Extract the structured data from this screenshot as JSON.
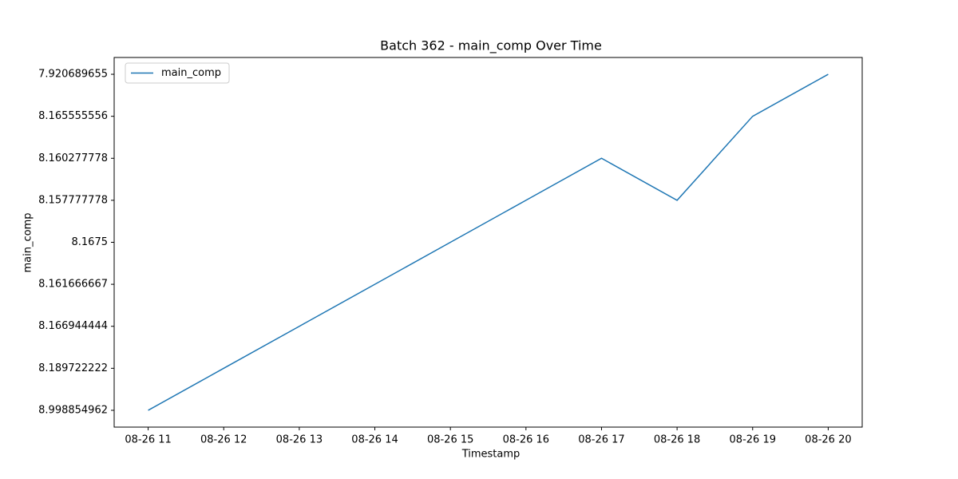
{
  "chart_data": {
    "type": "line",
    "title": "Batch 362 - main_comp Over Time",
    "x_label": "Timestamp",
    "y_label": "main_comp",
    "categories": [
      "08-26 11",
      "08-26 12",
      "08-26 13",
      "08-26 14",
      "08-26 15",
      "08-26 16",
      "08-26 17",
      "08-26 18",
      "08-26 19",
      "08-26 20"
    ],
    "ycategories": [
      8.998854962,
      8.189722222,
      8.166944444,
      8.161666667,
      8.1675,
      8.157777778,
      8.160277778,
      8.165555556,
      7.920689655
    ],
    "series": [
      {
        "name": "main_comp",
        "color": "#1f77b4",
        "values": [
          8.998854962,
          8.189722222,
          8.166944444,
          8.161666667,
          8.1675,
          8.157777778,
          8.160277778,
          8.157777778,
          8.165555556,
          7.920689655
        ]
      }
    ],
    "legend": "upper left"
  }
}
